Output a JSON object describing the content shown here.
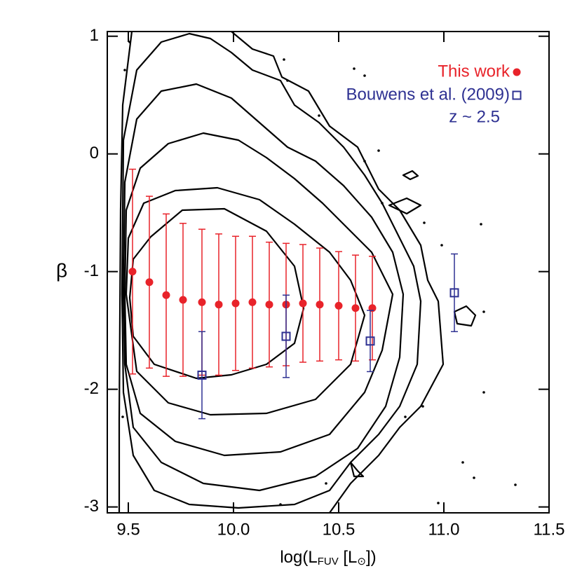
{
  "chart_data": {
    "type": "scatter",
    "x_label_parts": [
      "log(L",
      "FUV",
      " [L",
      "⊙",
      "])"
    ],
    "y_label": "β",
    "xlim": [
      9.4,
      11.5
    ],
    "xticks": [
      9.5,
      10.0,
      10.5,
      11.0,
      11.5
    ],
    "ylim": [
      -3.05,
      1.04
    ],
    "yticks": [
      1,
      0,
      -1,
      -2,
      -3
    ],
    "annotation": "z ~ 2.5",
    "series": [
      {
        "name": "This work",
        "color": "#e8232a",
        "marker": "circle",
        "x": [
          9.52,
          9.6,
          9.68,
          9.76,
          9.85,
          9.93,
          10.01,
          10.09,
          10.17,
          10.25,
          10.33,
          10.41,
          10.5,
          10.58,
          10.66
        ],
        "values": [
          -1.0,
          -1.09,
          -1.2,
          -1.24,
          -1.26,
          -1.28,
          -1.27,
          -1.26,
          -1.28,
          -1.28,
          -1.27,
          -1.28,
          -1.29,
          -1.31,
          -1.31
        ],
        "errors": [
          0.87,
          0.73,
          0.69,
          0.65,
          0.62,
          0.6,
          0.57,
          0.56,
          0.53,
          0.52,
          0.5,
          0.48,
          0.46,
          0.45,
          0.44
        ]
      },
      {
        "name": "Bouwens et al. (2009)",
        "color": "#2e3192",
        "marker": "square",
        "x": [
          9.85,
          10.25,
          10.65,
          11.05
        ],
        "values": [
          -1.88,
          -1.55,
          -1.59,
          -1.18
        ],
        "errors": [
          0.37,
          0.35,
          0.26,
          0.33
        ]
      }
    ]
  }
}
